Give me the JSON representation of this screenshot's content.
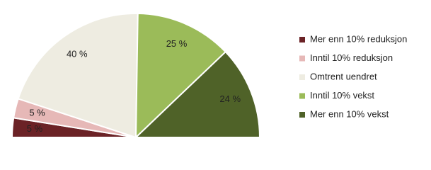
{
  "chart_data": {
    "type": "pie",
    "half": true,
    "categories": [
      "Mer enn 10% reduksjon",
      "Inntil 10% reduksjon",
      "Omtrent uendret",
      "Inntil 10% vekst",
      "Mer enn 10% vekst"
    ],
    "values": [
      5,
      5,
      40,
      25,
      24
    ],
    "value_labels": [
      "5 %",
      "5 %",
      "40 %",
      "25 %",
      "24 %"
    ],
    "colors": [
      "#6b2226",
      "#e6b8b7",
      "#eeece1",
      "#9bbb59",
      "#4f6228"
    ],
    "legend": "right"
  }
}
